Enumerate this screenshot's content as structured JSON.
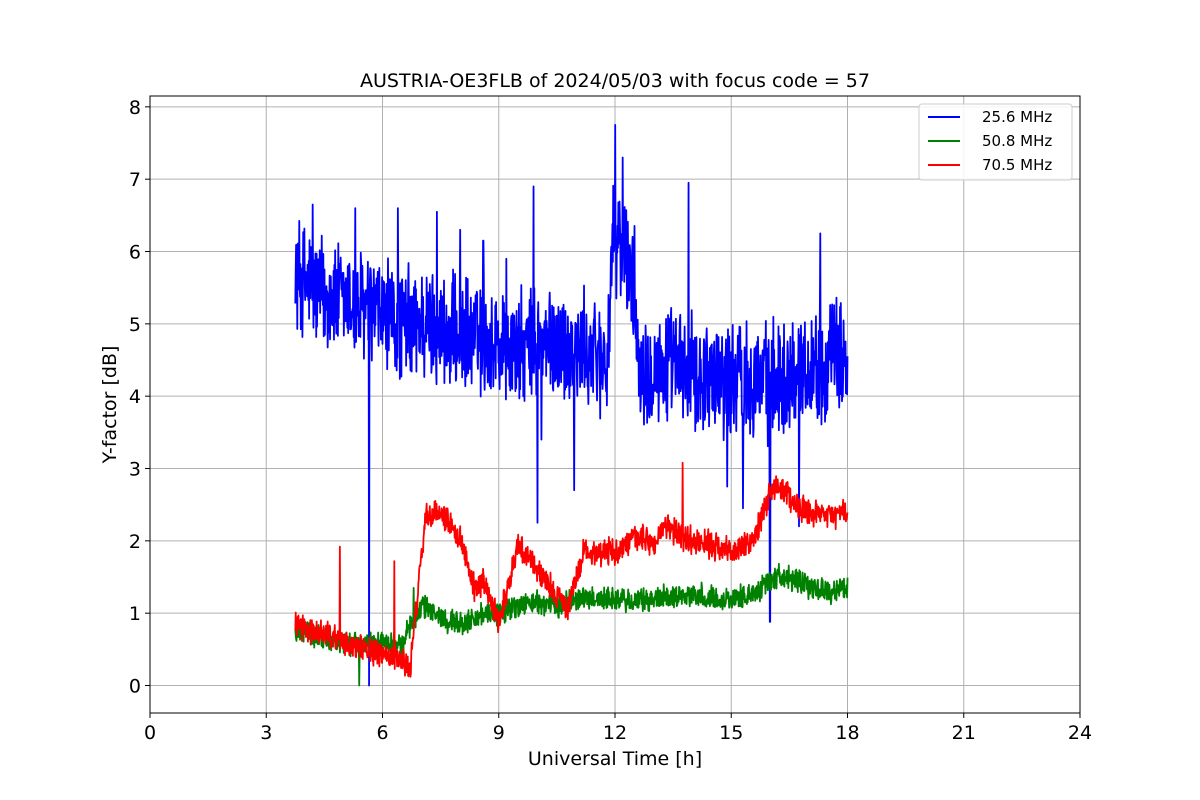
{
  "chart_data": {
    "type": "line",
    "title": "AUSTRIA-OE3FLB of 2024/05/03 with focus code = 57",
    "xlabel": "Universal Time [h]",
    "ylabel": "Y-factor [dB]",
    "xlim": [
      0,
      24
    ],
    "ylim": [
      -0.38,
      8.15
    ],
    "xticks": [
      0,
      3,
      6,
      9,
      12,
      15,
      18,
      21,
      24
    ],
    "yticks": [
      0,
      1,
      2,
      3,
      4,
      5,
      6,
      7,
      8
    ],
    "grid": true,
    "legend_position": "top-right",
    "series": [
      {
        "name": "25.6 MHz",
        "color": "#0000ff",
        "x": [
          3.75,
          4.0,
          4.5,
          5.0,
          5.5,
          6.0,
          6.5,
          7.0,
          7.5,
          8.0,
          8.5,
          9.0,
          9.5,
          10.0,
          10.5,
          11.0,
          11.5,
          11.8,
          11.9,
          12.0,
          12.3,
          12.5,
          12.6,
          13.0,
          13.5,
          14.0,
          14.5,
          15.0,
          15.5,
          16.0,
          16.5,
          17.0,
          17.5,
          18.0
        ],
        "y": [
          5.7,
          5.6,
          5.4,
          5.3,
          5.2,
          5.1,
          5.0,
          5.0,
          4.9,
          4.8,
          4.8,
          4.7,
          4.6,
          4.7,
          4.7,
          4.6,
          4.6,
          4.5,
          5.6,
          6.3,
          5.9,
          5.5,
          4.5,
          4.4,
          4.4,
          4.3,
          4.3,
          4.3,
          4.3,
          4.2,
          4.3,
          4.4,
          4.5,
          4.6
        ],
        "band": 0.95,
        "spikes": [
          [
            4.2,
            6.65
          ],
          [
            5.3,
            6.6
          ],
          [
            5.65,
            0.0
          ],
          [
            6.4,
            6.6
          ],
          [
            7.4,
            6.55
          ],
          [
            8.0,
            6.3
          ],
          [
            8.6,
            6.15
          ],
          [
            9.2,
            5.9
          ],
          [
            9.9,
            6.9
          ],
          [
            10.0,
            2.25
          ],
          [
            10.1,
            3.4
          ],
          [
            10.95,
            2.7
          ],
          [
            12.0,
            7.75
          ],
          [
            12.2,
            7.3
          ],
          [
            13.9,
            6.95
          ],
          [
            14.9,
            2.75
          ],
          [
            15.3,
            2.45
          ],
          [
            16.0,
            0.88
          ],
          [
            16.75,
            2.2
          ],
          [
            17.3,
            6.25
          ]
        ]
      },
      {
        "name": "50.8 MHz",
        "color": "#008000",
        "x": [
          3.75,
          4.0,
          4.5,
          5.0,
          5.5,
          6.0,
          6.5,
          6.7,
          7.0,
          7.5,
          8.0,
          8.5,
          9.0,
          9.5,
          10.0,
          10.5,
          11.0,
          11.5,
          12.0,
          12.5,
          13.0,
          13.5,
          14.0,
          14.5,
          15.0,
          15.5,
          16.0,
          16.3,
          16.8,
          17.5,
          18.0
        ],
        "y": [
          0.7,
          0.75,
          0.65,
          0.6,
          0.55,
          0.6,
          0.55,
          0.8,
          1.1,
          0.95,
          0.85,
          0.95,
          1.0,
          1.1,
          1.15,
          1.1,
          1.2,
          1.2,
          1.2,
          1.15,
          1.2,
          1.25,
          1.25,
          1.2,
          1.2,
          1.25,
          1.45,
          1.55,
          1.4,
          1.3,
          1.35
        ],
        "band": 0.2,
        "spikes": [
          [
            5.4,
            0.0
          ],
          [
            6.8,
            1.35
          ]
        ]
      },
      {
        "name": "70.5 MHz",
        "color": "#ff0000",
        "x": [
          3.75,
          4.0,
          4.5,
          5.0,
          5.5,
          6.0,
          6.5,
          6.7,
          6.9,
          7.1,
          7.5,
          7.8,
          8.1,
          8.4,
          8.6,
          8.8,
          9.0,
          9.3,
          9.5,
          9.8,
          10.2,
          10.5,
          10.8,
          11.0,
          11.2,
          11.5,
          12.0,
          12.3,
          12.6,
          13.0,
          13.3,
          13.6,
          14.0,
          14.5,
          15.0,
          15.5,
          15.8,
          16.0,
          16.3,
          16.6,
          17.0,
          17.5,
          18.0
        ],
        "y": [
          0.85,
          0.75,
          0.7,
          0.6,
          0.5,
          0.45,
          0.35,
          0.2,
          1.2,
          2.3,
          2.4,
          2.2,
          1.9,
          1.3,
          1.45,
          1.2,
          0.9,
          1.5,
          1.95,
          1.75,
          1.45,
          1.25,
          1.05,
          1.5,
          1.85,
          1.85,
          1.85,
          1.95,
          2.05,
          1.95,
          2.2,
          2.1,
          2.0,
          1.95,
          1.85,
          1.95,
          2.3,
          2.7,
          2.75,
          2.55,
          2.35,
          2.35,
          2.4
        ],
        "band": 0.22,
        "spikes": [
          [
            4.9,
            1.92
          ],
          [
            6.3,
            1.72
          ],
          [
            13.75,
            3.08
          ]
        ]
      }
    ]
  }
}
